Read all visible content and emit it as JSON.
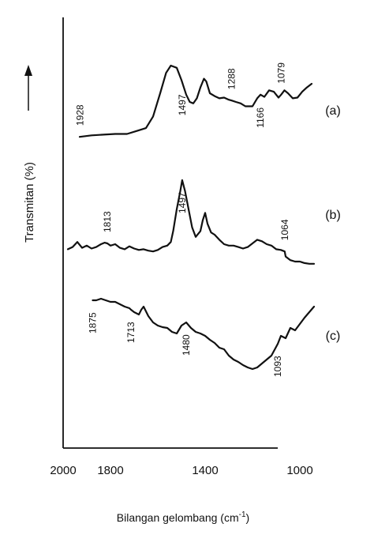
{
  "chart_data": {
    "type": "line",
    "xlabel": "Bilangan gelombang (cm",
    "xlabel_sup": "-1",
    "xlabel_close": ")",
    "ylabel": "Transmitan (%)",
    "xlim": [
      2000,
      850
    ],
    "x_ticks": [
      "2000",
      "1800",
      "1400",
      "1000"
    ],
    "x_tick_values": [
      2000,
      1800,
      1400,
      1000
    ],
    "y_ticks": [],
    "x_reversed": true,
    "grid": false,
    "series": [
      {
        "name": "(a)",
        "x": [
          1930,
          1880,
          1830,
          1780,
          1730,
          1690,
          1650,
          1620,
          1590,
          1565,
          1545,
          1520,
          1500,
          1480,
          1465,
          1450,
          1435,
          1420,
          1405,
          1395,
          1380,
          1360,
          1340,
          1320,
          1300,
          1288,
          1270,
          1250,
          1230,
          1200,
          1180,
          1166,
          1150,
          1130,
          1110,
          1090,
          1079,
          1065,
          1050,
          1030,
          1010,
          990,
          970,
          950
        ],
        "y": [
          0.02,
          0.04,
          0.05,
          0.06,
          0.06,
          0.1,
          0.14,
          0.3,
          0.62,
          0.9,
          1.0,
          0.97,
          0.8,
          0.6,
          0.5,
          0.48,
          0.55,
          0.7,
          0.82,
          0.78,
          0.62,
          0.58,
          0.55,
          0.56,
          0.53,
          0.52,
          0.5,
          0.48,
          0.44,
          0.44,
          0.55,
          0.6,
          0.57,
          0.66,
          0.64,
          0.56,
          0.6,
          0.66,
          0.62,
          0.55,
          0.56,
          0.64,
          0.7,
          0.75
        ]
      },
      {
        "name": "(b)",
        "x": [
          1980,
          1960,
          1940,
          1920,
          1900,
          1880,
          1860,
          1840,
          1825,
          1813,
          1800,
          1780,
          1760,
          1740,
          1720,
          1700,
          1680,
          1660,
          1640,
          1620,
          1600,
          1580,
          1560,
          1545,
          1535,
          1520,
          1505,
          1497,
          1485,
          1470,
          1455,
          1440,
          1420,
          1410,
          1400,
          1390,
          1375,
          1360,
          1340,
          1320,
          1300,
          1280,
          1260,
          1240,
          1220,
          1200,
          1180,
          1160,
          1140,
          1120,
          1100,
          1080,
          1064,
          1060,
          1040,
          1020,
          1000,
          980,
          960,
          940
        ],
        "y": [
          0.05,
          0.08,
          0.15,
          0.07,
          0.1,
          0.06,
          0.08,
          0.12,
          0.14,
          0.13,
          0.1,
          0.12,
          0.07,
          0.05,
          0.09,
          0.06,
          0.04,
          0.05,
          0.03,
          0.02,
          0.04,
          0.08,
          0.1,
          0.15,
          0.3,
          0.6,
          0.85,
          1.0,
          0.85,
          0.6,
          0.35,
          0.22,
          0.3,
          0.45,
          0.55,
          0.4,
          0.28,
          0.25,
          0.18,
          0.12,
          0.1,
          0.1,
          0.08,
          0.06,
          0.08,
          0.13,
          0.18,
          0.16,
          0.12,
          0.1,
          0.05,
          0.04,
          0.02,
          -0.05,
          -0.1,
          -0.12,
          -0.12,
          -0.14,
          -0.15,
          -0.15
        ]
      },
      {
        "name": "(c)",
        "x": [
          1875,
          1860,
          1840,
          1820,
          1800,
          1780,
          1760,
          1740,
          1720,
          1713,
          1700,
          1680,
          1670,
          1660,
          1640,
          1620,
          1600,
          1580,
          1560,
          1540,
          1520,
          1500,
          1480,
          1460,
          1440,
          1420,
          1400,
          1380,
          1360,
          1340,
          1320,
          1300,
          1280,
          1260,
          1240,
          1220,
          1200,
          1180,
          1160,
          1140,
          1120,
          1093,
          1080,
          1060,
          1040,
          1020,
          1000,
          980,
          960,
          940
        ],
        "y": [
          0.9,
          0.9,
          0.92,
          0.9,
          0.88,
          0.88,
          0.85,
          0.82,
          0.8,
          0.78,
          0.75,
          0.72,
          0.78,
          0.82,
          0.7,
          0.62,
          0.58,
          0.56,
          0.55,
          0.5,
          0.48,
          0.58,
          0.62,
          0.55,
          0.5,
          0.48,
          0.45,
          0.4,
          0.36,
          0.3,
          0.28,
          0.2,
          0.15,
          0.12,
          0.08,
          0.05,
          0.03,
          0.05,
          0.1,
          0.15,
          0.2,
          0.35,
          0.45,
          0.42,
          0.55,
          0.52,
          0.6,
          0.68,
          0.75,
          0.82
        ]
      }
    ],
    "panel_labels": [
      "(a)",
      "(b)",
      "(c)"
    ],
    "peak_labels": [
      {
        "series": 0,
        "text": "1928",
        "x": 1928,
        "pos": "above"
      },
      {
        "series": 0,
        "text": "1497",
        "x": 1497,
        "pos": "below"
      },
      {
        "series": 0,
        "text": "1288",
        "x": 1288,
        "pos": "above"
      },
      {
        "series": 0,
        "text": "1166",
        "x": 1166,
        "pos": "below"
      },
      {
        "series": 0,
        "text": "1079",
        "x": 1079,
        "pos": "above"
      },
      {
        "series": 1,
        "text": "1813",
        "x": 1813,
        "pos": "above"
      },
      {
        "series": 1,
        "text": "1497",
        "x": 1497,
        "pos": "below"
      },
      {
        "series": 1,
        "text": "1064",
        "x": 1064,
        "pos": "above"
      },
      {
        "series": 2,
        "text": "1875",
        "x": 1875,
        "pos": "below"
      },
      {
        "series": 2,
        "text": "1713",
        "x": 1713,
        "pos": "below"
      },
      {
        "series": 2,
        "text": "1480",
        "x": 1480,
        "pos": "below"
      },
      {
        "series": 2,
        "text": "1093",
        "x": 1093,
        "pos": "below"
      }
    ]
  }
}
